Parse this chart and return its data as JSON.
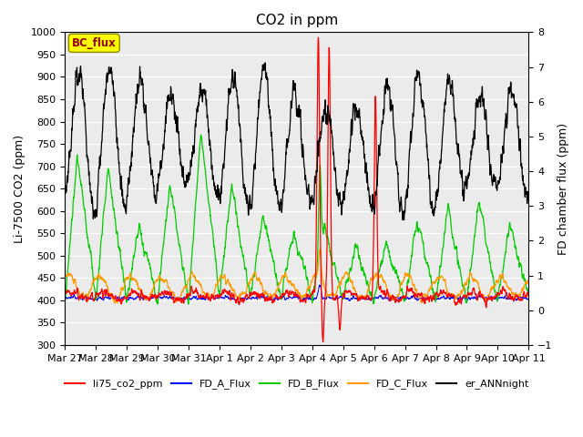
{
  "title": "CO2 in ppm",
  "ylabel_left": "Li-7500 CO2 (ppm)",
  "ylabel_right": "FD chamber flux (ppm)",
  "ylim_left": [
    300,
    1000
  ],
  "ylim_right": [
    -1.0,
    8.0
  ],
  "yticks_left": [
    300,
    350,
    400,
    450,
    500,
    550,
    600,
    650,
    700,
    750,
    800,
    850,
    900,
    950,
    1000
  ],
  "yticks_right": [
    -1.0,
    0.0,
    1.0,
    2.0,
    3.0,
    4.0,
    5.0,
    6.0,
    7.0,
    8.0
  ],
  "xtick_labels": [
    "Mar 27",
    "Mar 28",
    "Mar 29",
    "Mar 30",
    "Mar 31",
    "Apr 1",
    "Apr 2",
    "Apr 3",
    "Apr 4",
    "Apr 5",
    "Apr 6",
    "Apr 7",
    "Apr 8",
    "Apr 9",
    "Apr 10",
    "Apr 11"
  ],
  "legend_items": [
    {
      "label": "li75_co2_ppm",
      "color": "#ff0000"
    },
    {
      "label": "FD_A_Flux",
      "color": "#0000ff"
    },
    {
      "label": "FD_B_Flux",
      "color": "#00cc00"
    },
    {
      "label": "FD_C_Flux",
      "color": "#ff9900"
    },
    {
      "label": "er_ANNnight",
      "color": "#000000"
    }
  ],
  "bc_flux_box_color": "#ffff00",
  "bc_flux_text_color": "#990000",
  "background_color": "#ebebeb",
  "n_points": 2160
}
